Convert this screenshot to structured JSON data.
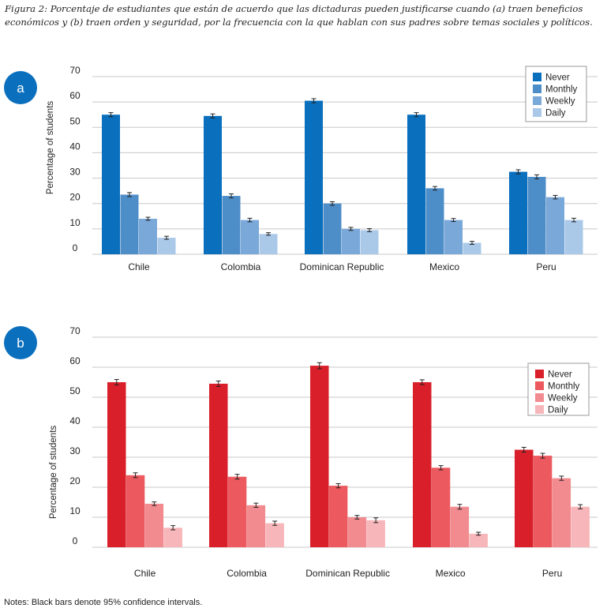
{
  "caption": "Figura 2: Porcentaje de estudiantes que están de acuerdo que las dictaduras pueden justificarse cuando (a) traen beneficios económicos y (b) traen orden y seguridad, por la frecuencia con la que hablan con sus padres sobre temas sociales y políticos.",
  "notes": "Notes: Black bars denote 95% confidence intervals.",
  "chart_data": [
    {
      "panel_label": "a",
      "type": "bar",
      "categories": [
        "Chile",
        "Colombia",
        "Dominican Republic",
        "Mexico",
        "Peru"
      ],
      "ylabel": "Percentage of students",
      "yticks": [
        0,
        10,
        20,
        30,
        40,
        50,
        60,
        70
      ],
      "ylim": [
        0,
        70
      ],
      "legend_position": "top-right",
      "grid": true,
      "error_bars": true,
      "series": [
        {
          "name": "Never",
          "color": "#0a6fbd",
          "values": [
            55,
            54.5,
            60.5,
            55,
            32.5
          ],
          "ci": [
            0.8,
            0.8,
            0.8,
            0.8,
            0.8
          ]
        },
        {
          "name": "Monthly",
          "color": "#4e8ec8",
          "values": [
            23.5,
            23,
            20,
            26,
            30.5
          ],
          "ci": [
            0.8,
            0.8,
            0.7,
            0.7,
            0.8
          ]
        },
        {
          "name": "Weekly",
          "color": "#7aa8d9",
          "values": [
            14,
            13.5,
            10,
            13.5,
            22.5
          ],
          "ci": [
            0.6,
            0.7,
            0.6,
            0.6,
            0.7
          ]
        },
        {
          "name": "Daily",
          "color": "#aac8e8",
          "values": [
            6.5,
            8,
            9.5,
            4.5,
            13.5
          ],
          "ci": [
            0.6,
            0.5,
            0.6,
            0.6,
            0.7
          ]
        }
      ]
    },
    {
      "panel_label": "b",
      "type": "bar",
      "categories": [
        "Chile",
        "Colombia",
        "Dominican Republic",
        "Mexico",
        "Peru"
      ],
      "ylabel": "Percentage of students",
      "yticks": [
        0,
        10,
        20,
        30,
        40,
        50,
        60,
        70
      ],
      "ylim": [
        0,
        70
      ],
      "legend_position": "top-right",
      "grid": true,
      "error_bars": true,
      "series": [
        {
          "name": "Never",
          "color": "#d9202a",
          "values": [
            55,
            54.5,
            60.5,
            55,
            32.5
          ],
          "ci": [
            0.9,
            0.9,
            1.0,
            0.8,
            0.8
          ]
        },
        {
          "name": "Monthly",
          "color": "#ec5a60",
          "values": [
            24,
            23.5,
            20.5,
            26.5,
            30.5
          ],
          "ci": [
            0.8,
            0.8,
            0.7,
            0.7,
            0.8
          ]
        },
        {
          "name": "Weekly",
          "color": "#f28b90",
          "values": [
            14.5,
            14,
            10,
            13.5,
            23
          ],
          "ci": [
            0.6,
            0.7,
            0.6,
            0.8,
            0.7
          ]
        },
        {
          "name": "Daily",
          "color": "#f7b6b9",
          "values": [
            6.5,
            8,
            9,
            4.5,
            13.5
          ],
          "ci": [
            0.7,
            0.7,
            0.8,
            0.5,
            0.7
          ]
        }
      ]
    }
  ]
}
